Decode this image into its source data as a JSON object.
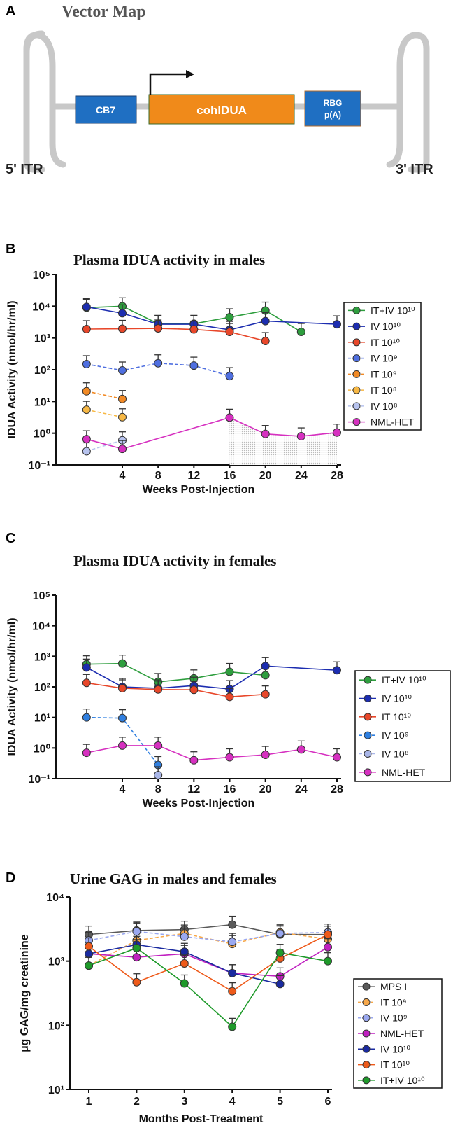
{
  "panel_a": {
    "letter": "A",
    "title": "Vector Map",
    "elements": {
      "promoter": "CB7",
      "transgene": "cohIDUA",
      "polya_line1": "RBG",
      "polya_line2": "p(A)",
      "left_itr": "5' ITR",
      "right_itr": "3' ITR"
    },
    "colors": {
      "promoter": "#1f6fc2",
      "transgene": "#f08a1a",
      "polya": "#1f6fc2",
      "backbone": "#c8c8c8"
    }
  },
  "chart_data": [
    {
      "panel_letter": "B",
      "type": "line",
      "title": "Plasma IDUA activity in males",
      "xlabel": "Weeks Post-Injection",
      "ylabel": "IDUA Activity (nmol/hr/ml)",
      "yscale": "log",
      "ylim": [
        0.1,
        100000
      ],
      "xlim": [
        -4,
        29
      ],
      "xticks": [
        4,
        8,
        12,
        16,
        20,
        24,
        28
      ],
      "yticks": [
        "10⁻¹",
        "10⁰",
        "10¹",
        "10²",
        "10³",
        "10⁴",
        "10⁵"
      ],
      "legend_position": "right",
      "grid": false,
      "shaded_region": {
        "series": "NML-HET",
        "from_x": 16,
        "to_x": 28
      },
      "series": [
        {
          "name": "IT+IV 10¹⁰",
          "color": "#2e9e3e",
          "dashed": false,
          "x": [
            0,
            4,
            8,
            12,
            16,
            20,
            24
          ],
          "y": [
            9000,
            10000,
            2800,
            2800,
            4500,
            7300,
            1550
          ]
        },
        {
          "name": "IV 10¹⁰",
          "color": "#1c2db0",
          "dashed": false,
          "x": [
            0,
            4,
            8,
            12,
            16,
            20,
            28
          ],
          "y": [
            9500,
            6000,
            2700,
            2700,
            1800,
            3400,
            2700
          ]
        },
        {
          "name": "IT 10¹⁰",
          "color": "#e8472a",
          "dashed": false,
          "x": [
            0,
            4,
            8,
            12,
            16,
            20
          ],
          "y": [
            1900,
            1950,
            2000,
            1850,
            1550,
            800
          ]
        },
        {
          "name": "IV 10⁹",
          "color": "#4f6fe0",
          "dashed": true,
          "x": [
            0,
            4,
            8,
            12,
            16
          ],
          "y": [
            150,
            95,
            160,
            135,
            63
          ]
        },
        {
          "name": "IT 10⁹",
          "color": "#f28a25",
          "dashed": true,
          "x": [
            0,
            4
          ],
          "y": [
            21,
            12
          ]
        },
        {
          "name": "IT 10⁸",
          "color": "#f7b844",
          "dashed": true,
          "x": [
            0,
            4
          ],
          "y": [
            5.5,
            3.2
          ]
        },
        {
          "name": "IV 10⁸",
          "color": "#b7c3ee",
          "dashed": true,
          "x": [
            0,
            4
          ],
          "y": [
            0.27,
            0.6
          ]
        },
        {
          "name": "NML-HET",
          "color": "#d630c0",
          "dashed": false,
          "x": [
            0,
            4,
            16,
            20,
            24,
            28
          ],
          "y": [
            0.65,
            0.32,
            3.1,
            0.95,
            0.8,
            1.05
          ]
        }
      ]
    },
    {
      "panel_letter": "C",
      "type": "line",
      "title": "Plasma IDUA activity in females",
      "xlabel": "Weeks Post-Injection",
      "ylabel": "IDUA Activity (nmol/hr/ml)",
      "yscale": "log",
      "ylim": [
        0.1,
        100000
      ],
      "xlim": [
        -4,
        29
      ],
      "xticks": [
        4,
        8,
        12,
        16,
        20,
        24,
        28
      ],
      "yticks": [
        "10⁻¹",
        "10⁰",
        "10¹",
        "10²",
        "10³",
        "10⁴",
        "10⁵"
      ],
      "legend_position": "right",
      "grid": false,
      "series": [
        {
          "name": "IT+IV 10¹⁰",
          "color": "#2e9e3e",
          "dashed": false,
          "x": [
            0,
            4,
            8,
            12,
            16,
            20
          ],
          "y": [
            550,
            580,
            145,
            190,
            310,
            240
          ]
        },
        {
          "name": "IV 10¹⁰",
          "color": "#1c2db0",
          "dashed": false,
          "x": [
            0,
            4,
            8,
            12,
            16,
            20,
            28
          ],
          "y": [
            430,
            100,
            90,
            110,
            85,
            480,
            350
          ]
        },
        {
          "name": "IT 10¹⁰",
          "color": "#e8472a",
          "dashed": false,
          "x": [
            0,
            4,
            8,
            12,
            16,
            20
          ],
          "y": [
            135,
            90,
            82,
            80,
            47,
            57
          ]
        },
        {
          "name": "IV 10⁹",
          "color": "#2f7fe0",
          "dashed": true,
          "x": [
            0,
            4,
            8
          ],
          "y": [
            10,
            9.5,
            0.28
          ]
        },
        {
          "name": "IV 10⁸",
          "color": "#a9b6e8",
          "dashed": true,
          "x": [
            8
          ],
          "y": [
            0.13
          ]
        },
        {
          "name": "NML-HET",
          "color": "#d630c0",
          "dashed": false,
          "x": [
            0,
            4,
            8,
            12,
            16,
            20,
            24,
            28
          ],
          "y": [
            0.7,
            1.2,
            1.2,
            0.4,
            0.5,
            0.6,
            0.9,
            0.5
          ]
        }
      ]
    },
    {
      "panel_letter": "D",
      "type": "line",
      "title": "Urine GAG in males and females",
      "xlabel": "Months Post-Treatment",
      "ylabel": "µg GAG/mg creatinine",
      "yscale": "log",
      "ylim": [
        10,
        10000
      ],
      "xlim": [
        0.6,
        6.6
      ],
      "xticks": [
        1,
        2,
        3,
        4,
        5,
        6
      ],
      "yticks": [
        "10¹",
        "10²",
        "10³",
        "10⁴"
      ],
      "legend_position": "right",
      "grid": false,
      "series": [
        {
          "name": "MPS I",
          "color": "#5a5a5a",
          "dashed": false,
          "x": [
            1,
            2,
            3,
            4,
            5,
            6
          ],
          "y": [
            2600,
            3000,
            3100,
            3700,
            2600,
            2600
          ]
        },
        {
          "name": "IT 10⁹",
          "color": "#f7a84a",
          "dashed": true,
          "x": [
            1,
            2,
            3,
            4,
            5,
            6
          ],
          "y": [
            850,
            2100,
            2700,
            1850,
            2800,
            2200
          ]
        },
        {
          "name": "IV 10⁹",
          "color": "#9aa8f0",
          "dashed": true,
          "x": [
            1,
            2,
            3,
            4,
            5,
            6
          ],
          "y": [
            2100,
            2900,
            2400,
            2000,
            2700,
            2800
          ]
        },
        {
          "name": "NML-HET",
          "color": "#c020c0",
          "dashed": false,
          "x": [
            1,
            2,
            3,
            4,
            5,
            6
          ],
          "y": [
            1300,
            1150,
            1300,
            650,
            580,
            1650
          ]
        },
        {
          "name": "IV 10¹⁰",
          "color": "#1a2aa0",
          "dashed": false,
          "x": [
            1,
            2,
            3,
            4,
            5
          ],
          "y": [
            1300,
            1800,
            1400,
            650,
            440
          ]
        },
        {
          "name": "IT 10¹⁰",
          "color": "#ee5a1a",
          "dashed": false,
          "x": [
            1,
            2,
            3,
            4,
            5,
            6
          ],
          "y": [
            1700,
            470,
            920,
            340,
            1100,
            2600
          ]
        },
        {
          "name": "IT+IV 10¹⁰",
          "color": "#1e9a2a",
          "dashed": false,
          "x": [
            1,
            2,
            3,
            4,
            5,
            6
          ],
          "y": [
            850,
            1600,
            450,
            95,
            1350,
            1000
          ]
        }
      ]
    }
  ]
}
